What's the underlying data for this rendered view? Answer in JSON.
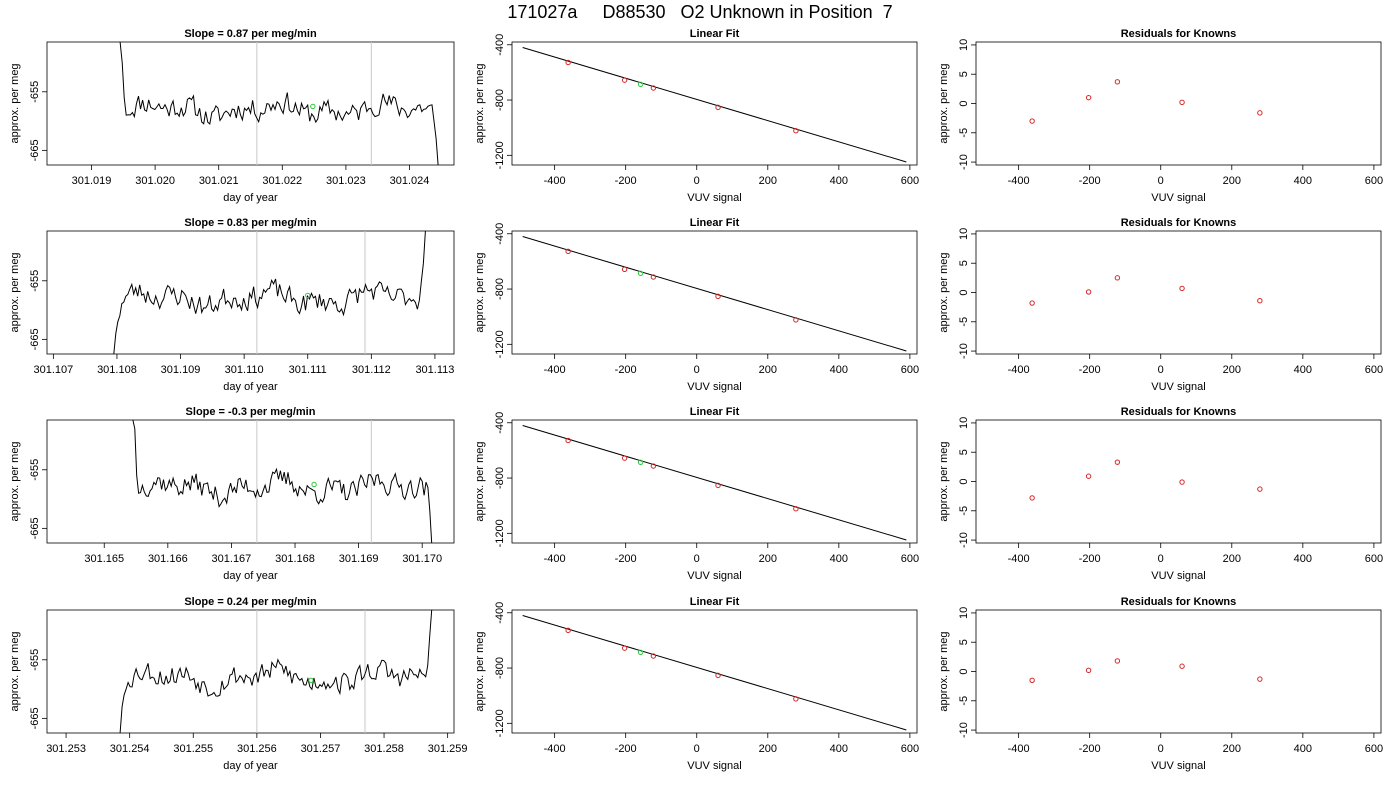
{
  "figure": {
    "title": "171027a     D88530   O2 Unknown in Position  7",
    "colors": {
      "line": "#000000",
      "known_point": "#d62728",
      "unknown_point": "#2ecc40",
      "vline": "#c8c8c8"
    }
  },
  "chart_data": [
    {
      "type": "line",
      "row": 1,
      "col": 1,
      "title": "Slope =  0.87  per meg/min",
      "xlabel": "day of year",
      "ylabel": "approx. per meg",
      "xlim": [
        301.0183,
        301.0247
      ],
      "ylim": [
        -667.5,
        -646.5
      ],
      "xticks": [
        301.019,
        301.02,
        301.021,
        301.022,
        301.023,
        301.024
      ],
      "xtick_labels": [
        "301.019",
        "301.020",
        "301.021",
        "301.022",
        "301.023",
        "301.024"
      ],
      "yticks": [
        -655,
        -665
      ],
      "ytick_labels": [
        "-655",
        "-665"
      ],
      "vlines": [
        301.0216,
        301.0234
      ],
      "trace": {
        "x_start": 301.01945,
        "x_end": 301.02445,
        "seed": 11,
        "head": [
          -646.5,
          -650,
          -656,
          -659
        ],
        "tail": [
          -660,
          -663,
          -667.5
        ]
      },
      "marker": {
        "x": 301.02248,
        "y": -657.5
      }
    },
    {
      "type": "line",
      "row": 2,
      "col": 1,
      "title": "Slope =  0.83  per meg/min",
      "xlabel": "day of year",
      "ylabel": "approx. per meg",
      "xlim": [
        301.1069,
        301.1133
      ],
      "ylim": [
        -667.5,
        -646.5
      ],
      "xticks": [
        301.107,
        301.108,
        301.109,
        301.11,
        301.111,
        301.112,
        301.113
      ],
      "xtick_labels": [
        "301.107",
        "301.108",
        "301.109",
        "301.110",
        "301.111",
        "301.112",
        "301.113"
      ],
      "yticks": [
        -655,
        -665
      ],
      "ytick_labels": [
        "-655",
        "-665"
      ],
      "vlines": [
        301.1102,
        301.1119
      ],
      "trace": {
        "x_start": 301.10795,
        "x_end": 301.11285,
        "seed": 23,
        "head": [
          -667.5,
          -664,
          -662,
          -661
        ],
        "tail": [
          -655,
          -652,
          -646.5
        ]
      },
      "marker": {
        "x": 301.111,
        "y": -657.5
      }
    },
    {
      "type": "line",
      "row": 3,
      "col": 1,
      "title": "Slope =  -0.3  per meg/min",
      "xlabel": "day of year",
      "ylabel": "approx. per meg",
      "xlim": [
        301.1641,
        301.1705
      ],
      "ylim": [
        -667.5,
        -646.5
      ],
      "xticks": [
        301.165,
        301.166,
        301.167,
        301.168,
        301.169,
        301.17
      ],
      "xtick_labels": [
        "301.165",
        "301.166",
        "301.167",
        "301.168",
        "301.169",
        "301.170"
      ],
      "yticks": [
        -655,
        -665
      ],
      "ytick_labels": [
        "-655",
        "-665"
      ],
      "vlines": [
        301.1674,
        301.1692
      ],
      "trace": {
        "x_start": 301.16545,
        "x_end": 301.17015,
        "seed": 37,
        "head": [
          -646.5,
          -648,
          -656,
          -659
        ],
        "tail": [
          -658,
          -662,
          -667.5
        ]
      },
      "marker": {
        "x": 301.1683,
        "y": -657.5
      }
    },
    {
      "type": "line",
      "row": 4,
      "col": 1,
      "title": "Slope =  0.24  per meg/min",
      "xlabel": "day of year",
      "ylabel": "approx. per meg",
      "xlim": [
        301.2527,
        301.2591
      ],
      "ylim": [
        -667.5,
        -646.5
      ],
      "xticks": [
        301.253,
        301.254,
        301.255,
        301.256,
        301.257,
        301.258,
        301.259
      ],
      "xtick_labels": [
        "301.253",
        "301.254",
        "301.255",
        "301.256",
        "301.257",
        "301.258",
        "301.259"
      ],
      "yticks": [
        -655,
        -665
      ],
      "ytick_labels": [
        "-655",
        "-665"
      ],
      "vlines": [
        301.256,
        301.2577
      ],
      "trace": {
        "x_start": 301.25385,
        "x_end": 301.25875,
        "seed": 53,
        "head": [
          -667.5,
          -663,
          -661,
          -660
        ],
        "tail": [
          -656,
          -651,
          -646.5
        ]
      },
      "marker": {
        "x": 301.25685,
        "y": -658.5
      }
    },
    {
      "type": "scatter",
      "row": 1,
      "col": 2,
      "title": "Linear Fit",
      "xlabel": "VUV signal",
      "ylabel": "approx. per meg",
      "xlim": [
        -520,
        620
      ],
      "ylim": [
        -1270,
        -380
      ],
      "xticks": [
        -400,
        -200,
        0,
        200,
        400,
        600
      ],
      "xtick_labels": [
        "-400",
        "-200",
        "0",
        "200",
        "400",
        "600"
      ],
      "yticks": [
        -400,
        -800,
        -1200
      ],
      "ytick_labels": [
        "-400",
        "-800",
        "-1200"
      ],
      "fit_line": {
        "x": [
          -490,
          590
        ],
        "y": [
          -420,
          -1248
        ]
      },
      "known_points": {
        "x": [
          -362,
          -203,
          -122,
          60,
          279
        ],
        "y": [
          -528,
          -656,
          -713,
          -853,
          -1022
        ]
      },
      "unknown_points": {
        "x": [
          -158
        ],
        "y": [
          -686
        ]
      }
    },
    {
      "type": "scatter",
      "row": 2,
      "col": 2,
      "title": "Linear Fit",
      "xlabel": "VUV signal",
      "ylabel": "approx. per meg",
      "xlim": [
        -520,
        620
      ],
      "ylim": [
        -1270,
        -380
      ],
      "xticks": [
        -400,
        -200,
        0,
        200,
        400,
        600
      ],
      "xtick_labels": [
        "-400",
        "-200",
        "0",
        "200",
        "400",
        "600"
      ],
      "yticks": [
        -400,
        -800,
        -1200
      ],
      "ytick_labels": [
        "-400",
        "-800",
        "-1200"
      ],
      "fit_line": {
        "x": [
          -490,
          590
        ],
        "y": [
          -420,
          -1248
        ]
      },
      "known_points": {
        "x": [
          -362,
          -203,
          -122,
          60,
          279
        ],
        "y": [
          -527,
          -657,
          -713,
          -853,
          -1023
        ]
      },
      "unknown_points": {
        "x": [
          -158
        ],
        "y": [
          -686
        ]
      }
    },
    {
      "type": "scatter",
      "row": 3,
      "col": 2,
      "title": "Linear Fit",
      "xlabel": "VUV signal",
      "ylabel": "approx. per meg",
      "xlim": [
        -520,
        620
      ],
      "ylim": [
        -1270,
        -380
      ],
      "xticks": [
        -400,
        -200,
        0,
        200,
        400,
        600
      ],
      "xtick_labels": [
        "-400",
        "-200",
        "0",
        "200",
        "400",
        "600"
      ],
      "yticks": [
        -400,
        -800,
        -1200
      ],
      "ytick_labels": [
        "-400",
        "-800",
        "-1200"
      ],
      "fit_line": {
        "x": [
          -490,
          590
        ],
        "y": [
          -420,
          -1248
        ]
      },
      "known_points": {
        "x": [
          -362,
          -203,
          -122,
          60,
          279
        ],
        "y": [
          -528,
          -656,
          -713,
          -853,
          -1022
        ]
      },
      "unknown_points": {
        "x": [
          -158
        ],
        "y": [
          -686
        ]
      }
    },
    {
      "type": "scatter",
      "row": 4,
      "col": 2,
      "title": "Linear Fit",
      "xlabel": "VUV signal",
      "ylabel": "approx. per meg",
      "xlim": [
        -520,
        620
      ],
      "ylim": [
        -1270,
        -380
      ],
      "xticks": [
        -400,
        -200,
        0,
        200,
        400,
        600
      ],
      "xtick_labels": [
        "-400",
        "-200",
        "0",
        "200",
        "400",
        "600"
      ],
      "yticks": [
        -400,
        -800,
        -1200
      ],
      "ytick_labels": [
        "-400",
        "-800",
        "-1200"
      ],
      "fit_line": {
        "x": [
          -490,
          590
        ],
        "y": [
          -420,
          -1248
        ]
      },
      "known_points": {
        "x": [
          -362,
          -203,
          -122,
          60,
          279
        ],
        "y": [
          -527,
          -656,
          -713,
          -853,
          -1023
        ]
      },
      "unknown_points": {
        "x": [
          -158
        ],
        "y": [
          -686
        ]
      }
    },
    {
      "type": "scatter",
      "row": 1,
      "col": 3,
      "title": "Residuals for Knowns",
      "xlabel": "VUV signal",
      "ylabel": "approx. per meg",
      "xlim": [
        -520,
        620
      ],
      "ylim": [
        -10.5,
        10.5
      ],
      "xticks": [
        -400,
        -200,
        0,
        200,
        400,
        600
      ],
      "xtick_labels": [
        "-400",
        "-200",
        "0",
        "200",
        "400",
        "600"
      ],
      "yticks": [
        -10,
        -5,
        0,
        5,
        10
      ],
      "ytick_labels": [
        "-10",
        "-5",
        "0",
        "5",
        "10"
      ],
      "known_points": {
        "x": [
          -362,
          -203,
          -122,
          60,
          279
        ],
        "y": [
          -3.0,
          1.0,
          3.7,
          0.2,
          -1.6
        ]
      }
    },
    {
      "type": "scatter",
      "row": 2,
      "col": 3,
      "title": "Residuals for Knowns",
      "xlabel": "VUV signal",
      "ylabel": "approx. per meg",
      "xlim": [
        -520,
        620
      ],
      "ylim": [
        -10.5,
        10.5
      ],
      "xticks": [
        -400,
        -200,
        0,
        200,
        400,
        600
      ],
      "xtick_labels": [
        "-400",
        "-200",
        "0",
        "200",
        "400",
        "600"
      ],
      "yticks": [
        -10,
        -5,
        0,
        5,
        10
      ],
      "ytick_labels": [
        "-10",
        "-5",
        "0",
        "5",
        "10"
      ],
      "known_points": {
        "x": [
          -362,
          -203,
          -122,
          60,
          279
        ],
        "y": [
          -1.8,
          0.1,
          2.5,
          0.7,
          -1.4
        ]
      }
    },
    {
      "type": "scatter",
      "row": 3,
      "col": 3,
      "title": "Residuals for Knowns",
      "xlabel": "VUV signal",
      "ylabel": "approx. per meg",
      "xlim": [
        -520,
        620
      ],
      "ylim": [
        -10.5,
        10.5
      ],
      "xticks": [
        -400,
        -200,
        0,
        200,
        400,
        600
      ],
      "xtick_labels": [
        "-400",
        "-200",
        "0",
        "200",
        "400",
        "600"
      ],
      "yticks": [
        -10,
        -5,
        0,
        5,
        10
      ],
      "ytick_labels": [
        "-10",
        "-5",
        "0",
        "5",
        "10"
      ],
      "known_points": {
        "x": [
          -362,
          -203,
          -122,
          60,
          279
        ],
        "y": [
          -2.8,
          0.9,
          3.3,
          -0.1,
          -1.3
        ]
      }
    },
    {
      "type": "scatter",
      "row": 4,
      "col": 3,
      "title": "Residuals for Knowns",
      "xlabel": "VUV signal",
      "ylabel": "approx. per meg",
      "xlim": [
        -520,
        620
      ],
      "ylim": [
        -10.5,
        10.5
      ],
      "xticks": [
        -400,
        -200,
        0,
        200,
        400,
        600
      ],
      "xtick_labels": [
        "-400",
        "-200",
        "0",
        "200",
        "400",
        "600"
      ],
      "yticks": [
        -10,
        -5,
        0,
        5,
        10
      ],
      "ytick_labels": [
        "-10",
        "-5",
        "0",
        "5",
        "10"
      ],
      "known_points": {
        "x": [
          -362,
          -203,
          -122,
          60,
          279
        ],
        "y": [
          -1.5,
          0.2,
          1.8,
          0.9,
          -1.3
        ]
      }
    }
  ]
}
